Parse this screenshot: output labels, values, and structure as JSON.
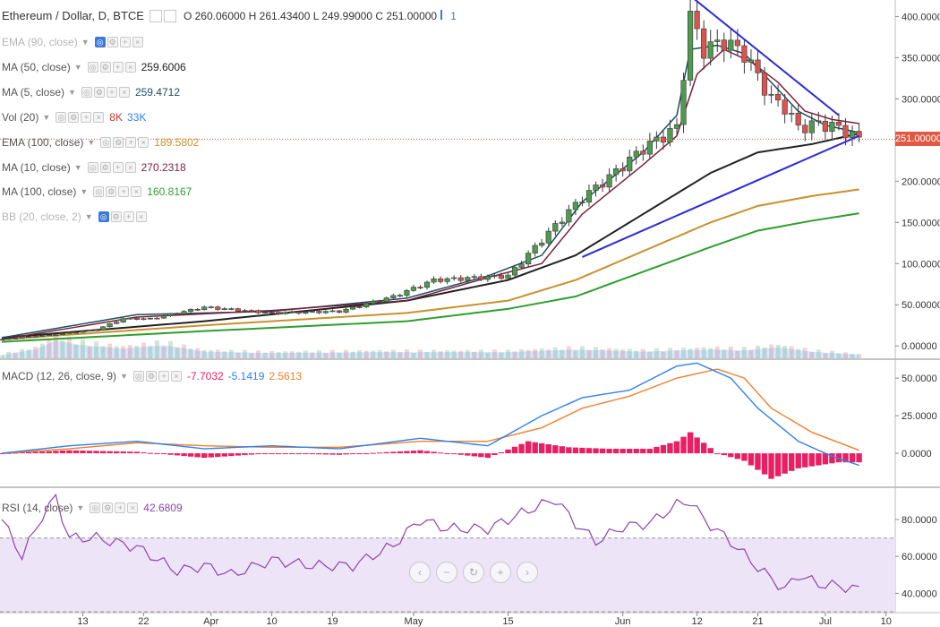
{
  "header": {
    "symbol": "Ethereum / Dollar, D, BTCE",
    "ohlc_text": "O 260.06000 H 261.43400 L 249.99000 C 251.00000",
    "flag": "1"
  },
  "indicators": [
    {
      "name": "EMA (90, close)",
      "value": "",
      "color": "#999999",
      "faded": true
    },
    {
      "name": "MA (50, close)",
      "value": "259.6006",
      "color": "#222222",
      "faded": false
    },
    {
      "name": "MA (5, close)",
      "value": "259.4712",
      "color": "#1b4f5e",
      "faded": false
    },
    {
      "name": "Vol (20)",
      "value": "8K",
      "value2": "33K",
      "color": "#c0392b",
      "color2": "#2f80ed",
      "faded": false
    },
    {
      "name": "EMA (100, close)",
      "value": "189.5802",
      "color": "#c8912e",
      "faded": false
    },
    {
      "name": "MA (10, close)",
      "value": "270.2318",
      "color": "#7b1f3a",
      "faded": false
    },
    {
      "name": "MA (100, close)",
      "value": "160.8167",
      "color": "#2e9e2e",
      "faded": false
    },
    {
      "name": "BB (20, close, 2)",
      "value": "",
      "color": "#999999",
      "faded": true
    }
  ],
  "macd_legend": {
    "name": "MACD (12, 26, close, 9)",
    "v1": "-7.7032",
    "v2": "-5.1419",
    "v3": "2.5613",
    "c1": "#e91e63",
    "c2": "#2f80ed",
    "c3": "#f07f2a"
  },
  "rsi_legend": {
    "name": "RSI (14, close)",
    "v1": "42.6809",
    "c1": "#8e44ad"
  },
  "last_price": "251.00000",
  "navigation": {
    "left": "‹",
    "zoom_out": "−",
    "reset": "↻",
    "zoom_in": "+",
    "right": "›"
  },
  "colors": {
    "up": "#4f9a4f",
    "down": "#d9534f",
    "trend": "#2b2bd8",
    "price_line": "#e05a43",
    "ma50": "#222222",
    "ema100": "#c8912e",
    "ma100": "#2e9e2e",
    "ma5": "#1b4f5e",
    "ma10": "#7b1f3a",
    "macd": "#2f80ed",
    "signal": "#f07f2a",
    "hist": "#e91e63",
    "rsi": "#8e44ad",
    "rsi_band": "#ede4f7"
  },
  "chart_data": [
    {
      "type": "candlestick",
      "title": "Ethereum / Dollar, D, BTCE",
      "ylim": [
        -15,
        420
      ],
      "y_ticks": [
        "0.00000",
        "50.00000",
        "100.00000",
        "150.00000",
        "200.00000",
        "250.00000",
        "300.00000",
        "350.00000",
        "400.00000"
      ],
      "x_tick_labels": [
        "13",
        "22",
        "Apr",
        "10",
        "19",
        "May",
        "15",
        "Jun",
        "12",
        "21",
        "Jul",
        "10"
      ],
      "x_tick_days": [
        12,
        21,
        31,
        40,
        49,
        61,
        75,
        92,
        103,
        112,
        122,
        131
      ],
      "last_day": 127,
      "candle_anchors": [
        [
          0,
          8
        ],
        [
          8,
          14
        ],
        [
          14,
          20
        ],
        [
          18,
          33
        ],
        [
          22,
          33
        ],
        [
          30,
          47
        ],
        [
          40,
          40
        ],
        [
          50,
          42
        ],
        [
          58,
          60
        ],
        [
          64,
          80
        ],
        [
          75,
          85
        ],
        [
          79,
          120
        ],
        [
          83,
          155
        ],
        [
          86,
          180
        ],
        [
          90,
          205
        ],
        [
          95,
          240
        ],
        [
          100,
          265
        ],
        [
          102,
          400
        ],
        [
          104,
          360
        ],
        [
          107,
          370
        ],
        [
          110,
          355
        ],
        [
          114,
          300
        ],
        [
          116,
          290
        ],
        [
          118,
          265
        ],
        [
          121,
          270
        ],
        [
          124,
          265
        ],
        [
          127,
          251
        ]
      ],
      "volume_ylim": [
        0,
        100
      ],
      "volume_anchors": [
        [
          0,
          8
        ],
        [
          5,
          20
        ],
        [
          8,
          40
        ],
        [
          12,
          30
        ],
        [
          18,
          22
        ],
        [
          24,
          30
        ],
        [
          30,
          15
        ],
        [
          40,
          12
        ],
        [
          55,
          14
        ],
        [
          75,
          14
        ],
        [
          85,
          20
        ],
        [
          95,
          15
        ],
        [
          105,
          20
        ],
        [
          110,
          18
        ],
        [
          115,
          25
        ],
        [
          120,
          15
        ],
        [
          127,
          8
        ]
      ],
      "trend_lines": [
        {
          "from": [
            102,
            425
          ],
          "to": [
            124,
            280
          ]
        },
        {
          "from": [
            86,
            108
          ],
          "to": [
            127,
            255
          ]
        }
      ],
      "moving_averages": [
        {
          "name": "MA (50, close)",
          "anchors": [
            [
              0,
              10
            ],
            [
              30,
              30
            ],
            [
              60,
              55
            ],
            [
              75,
              80
            ],
            [
              85,
              110
            ],
            [
              95,
              160
            ],
            [
              105,
              210
            ],
            [
              112,
              235
            ],
            [
              120,
              245
            ],
            [
              127,
              258
            ]
          ]
        },
        {
          "name": "EMA (100, close)",
          "anchors": [
            [
              0,
              8
            ],
            [
              30,
              25
            ],
            [
              60,
              40
            ],
            [
              75,
              55
            ],
            [
              85,
              80
            ],
            [
              95,
              115
            ],
            [
              105,
              150
            ],
            [
              112,
              170
            ],
            [
              120,
              182
            ],
            [
              127,
              190
            ]
          ]
        },
        {
          "name": "MA (100, close)",
          "anchors": [
            [
              0,
              5
            ],
            [
              30,
              18
            ],
            [
              60,
              30
            ],
            [
              75,
              45
            ],
            [
              85,
              60
            ],
            [
              95,
              90
            ],
            [
              105,
              120
            ],
            [
              112,
              140
            ],
            [
              120,
              152
            ],
            [
              127,
              161
            ]
          ]
        },
        {
          "name": "MA (5, close)",
          "anchors": [
            [
              0,
              10
            ],
            [
              20,
              38
            ],
            [
              40,
              42
            ],
            [
              60,
              58
            ],
            [
              72,
              85
            ],
            [
              80,
              110
            ],
            [
              86,
              175
            ],
            [
              95,
              235
            ],
            [
              100,
              280
            ],
            [
              102,
              360
            ],
            [
              106,
              365
            ],
            [
              110,
              355
            ],
            [
              114,
              320
            ],
            [
              118,
              285
            ],
            [
              122,
              268
            ],
            [
              127,
              259
            ]
          ]
        },
        {
          "name": "MA (10, close)",
          "anchors": [
            [
              0,
              8
            ],
            [
              20,
              35
            ],
            [
              40,
              43
            ],
            [
              60,
              55
            ],
            [
              72,
              83
            ],
            [
              80,
              100
            ],
            [
              86,
              160
            ],
            [
              95,
              220
            ],
            [
              100,
              255
            ],
            [
              103,
              330
            ],
            [
              107,
              360
            ],
            [
              111,
              345
            ],
            [
              115,
              320
            ],
            [
              119,
              285
            ],
            [
              123,
              275
            ],
            [
              127,
              270
            ]
          ]
        }
      ]
    },
    {
      "type": "macd",
      "title": "MACD (12, 26, close, 9)",
      "ylim": [
        -22,
        62
      ],
      "y_ticks": [
        "0.0000",
        "25.0000",
        "50.0000"
      ],
      "macd_anchors": [
        [
          0,
          0
        ],
        [
          10,
          5
        ],
        [
          20,
          8
        ],
        [
          30,
          3
        ],
        [
          40,
          5
        ],
        [
          50,
          3
        ],
        [
          62,
          10
        ],
        [
          72,
          5
        ],
        [
          80,
          25
        ],
        [
          86,
          37
        ],
        [
          93,
          42
        ],
        [
          100,
          58
        ],
        [
          103,
          60
        ],
        [
          108,
          50
        ],
        [
          112,
          30
        ],
        [
          118,
          8
        ],
        [
          123,
          -2
        ],
        [
          127,
          -8
        ]
      ],
      "signal_anchors": [
        [
          0,
          0
        ],
        [
          10,
          3
        ],
        [
          20,
          7
        ],
        [
          30,
          5
        ],
        [
          40,
          4
        ],
        [
          50,
          4
        ],
        [
          62,
          8
        ],
        [
          72,
          8
        ],
        [
          80,
          17
        ],
        [
          86,
          30
        ],
        [
          93,
          38
        ],
        [
          100,
          50
        ],
        [
          106,
          56
        ],
        [
          110,
          50
        ],
        [
          114,
          30
        ],
        [
          120,
          14
        ],
        [
          127,
          2
        ]
      ],
      "histogram_anchors": [
        [
          0,
          0
        ],
        [
          10,
          2
        ],
        [
          20,
          1
        ],
        [
          30,
          -3
        ],
        [
          40,
          0
        ],
        [
          50,
          -1
        ],
        [
          62,
          2
        ],
        [
          72,
          -3
        ],
        [
          78,
          8
        ],
        [
          84,
          4
        ],
        [
          90,
          3
        ],
        [
          96,
          3
        ],
        [
          100,
          8
        ],
        [
          102,
          14
        ],
        [
          106,
          0
        ],
        [
          110,
          -5
        ],
        [
          114,
          -17
        ],
        [
          118,
          -10
        ],
        [
          124,
          -6
        ],
        [
          127,
          -6
        ]
      ]
    },
    {
      "type": "line",
      "title": "RSI (14, close)",
      "ylim": [
        30,
        97
      ],
      "y_ticks": [
        "40.0000",
        "60.0000",
        "80.0000"
      ],
      "band": [
        30,
        70
      ],
      "rsi_anchors": [
        [
          0,
          80
        ],
        [
          3,
          60
        ],
        [
          6,
          82
        ],
        [
          8,
          92
        ],
        [
          10,
          70
        ],
        [
          14,
          70
        ],
        [
          20,
          65
        ],
        [
          26,
          52
        ],
        [
          30,
          55
        ],
        [
          34,
          50
        ],
        [
          40,
          58
        ],
        [
          46,
          55
        ],
        [
          52,
          55
        ],
        [
          58,
          66
        ],
        [
          62,
          80
        ],
        [
          66,
          75
        ],
        [
          72,
          75
        ],
        [
          78,
          85
        ],
        [
          82,
          91
        ],
        [
          85,
          78
        ],
        [
          88,
          68
        ],
        [
          92,
          76
        ],
        [
          96,
          78
        ],
        [
          100,
          88
        ],
        [
          102,
          90
        ],
        [
          104,
          80
        ],
        [
          108,
          68
        ],
        [
          112,
          54
        ],
        [
          116,
          42
        ],
        [
          118,
          50
        ],
        [
          121,
          45
        ],
        [
          124,
          44
        ],
        [
          127,
          42
        ]
      ]
    }
  ]
}
